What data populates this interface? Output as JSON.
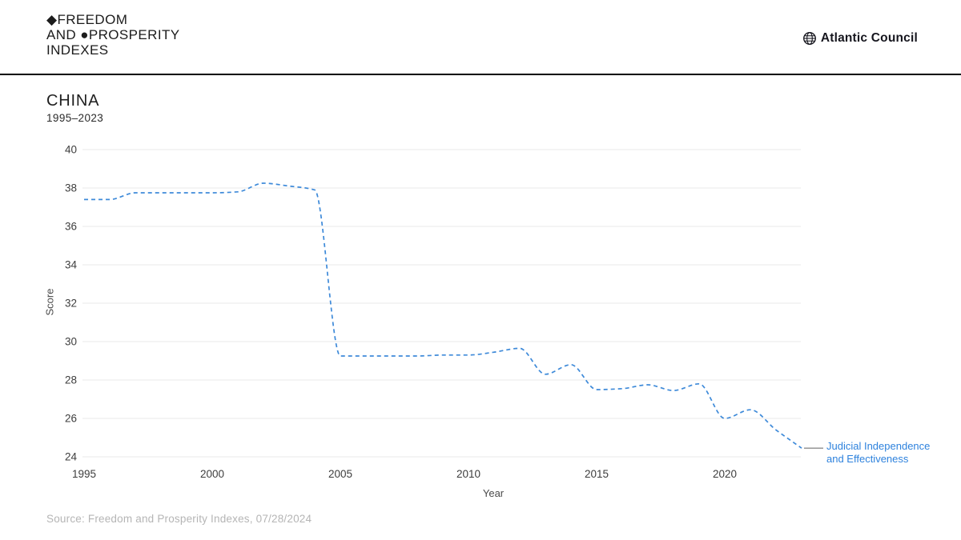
{
  "header": {
    "logo_lines": [
      "◆FREEDOM",
      "AND ●PROSPERITY",
      "INDEXES"
    ],
    "org": "Atlantic Council",
    "org_icon": "globe-icon"
  },
  "title": {
    "text": "CHINA",
    "subtitle": "1995–2023"
  },
  "source": "Source: Freedom and Prosperity Indexes, 07/28/2024",
  "chart_data": {
    "type": "line",
    "title": "CHINA",
    "subtitle": "1995–2023",
    "xlabel": "Year",
    "ylabel": "Score",
    "xlim": [
      1995,
      2023
    ],
    "ylim": [
      24,
      40
    ],
    "x_ticks": [
      1995,
      2000,
      2005,
      2010,
      2015,
      2020
    ],
    "y_ticks": [
      24,
      26,
      28,
      30,
      32,
      34,
      36,
      38,
      40
    ],
    "grid": "horizontal",
    "line_style": "dashed",
    "smoothing": "monotone-spline",
    "series": [
      {
        "name": "Judicial Independence and Effectiveness",
        "x": [
          1995,
          1996,
          1997,
          1998,
          1999,
          2000,
          2001,
          2002,
          2003,
          2004,
          2005,
          2006,
          2007,
          2008,
          2009,
          2010,
          2011,
          2012,
          2013,
          2014,
          2015,
          2016,
          2017,
          2018,
          2019,
          2020,
          2021,
          2022,
          2023
        ],
        "values": [
          37.4,
          37.4,
          37.75,
          37.75,
          37.75,
          37.75,
          37.8,
          38.25,
          38.1,
          37.9,
          29.25,
          29.25,
          29.25,
          29.25,
          29.3,
          29.3,
          29.45,
          29.65,
          28.3,
          28.8,
          27.5,
          27.55,
          27.75,
          27.45,
          27.8,
          26.0,
          26.45,
          25.4,
          24.45
        ]
      }
    ],
    "legend": {
      "position": "right-of-line-end",
      "label_lines": [
        "Judicial Independence",
        "and Effectiveness"
      ]
    }
  },
  "colors": {
    "line": "#3e8ad9",
    "legend_text": "#2e82dd",
    "grid": "#ededed",
    "axis_text": "#3d3d3d",
    "axis_title": "#4a4a4a",
    "title_text": "#1f1f1f",
    "source_text": "#b5b5b5",
    "connector": "#8c8c8c",
    "divider": "#000000",
    "brand_text": "#1c1c1c",
    "background": "#ffffff"
  }
}
